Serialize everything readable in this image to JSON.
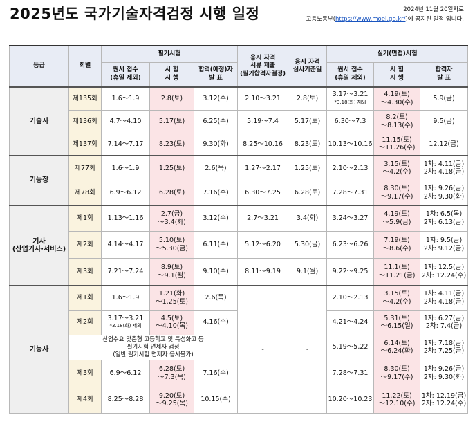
{
  "header": {
    "title": "2025년도 국가기술자격검정 시행 일정",
    "date_note": "2024년 11월 20일자로",
    "notice_pre": "고용노동부(",
    "notice_link": "https://www.moel.go.kr/",
    "notice_post": ")에 공지된 일정 입니다."
  },
  "table": {
    "h_grade": "등급",
    "h_session": "회별",
    "h_written": "필기시험",
    "h_w_app": [
      "원서 접수",
      "(휴일 제외)"
    ],
    "h_w_exam": [
      "시 험",
      "시 행"
    ],
    "h_w_result": [
      "합격(예정)자",
      "발 표"
    ],
    "h_doc": [
      "응시 자격",
      "서류 제출",
      "(필기합격자결정)"
    ],
    "h_review": [
      "응시 자격",
      "심사기준일"
    ],
    "h_practical": "실기(면접)시험",
    "h_p_app": [
      "원서 접수",
      "(휴일 제외)"
    ],
    "h_p_exam": [
      "시 험",
      "시 행"
    ],
    "h_p_result": [
      "합격자",
      "발 표"
    ],
    "groups": {
      "master": {
        "label": "기술사",
        "rows": [
          {
            "session": "제135회",
            "w_app": "1.6～1.9",
            "w_exam": "2.8(토)",
            "w_result": "3.12(수)",
            "doc": "2.10～3.21",
            "review": "2.8(토)",
            "p_app": "3.17～3.21",
            "p_app_note": "*3.18(화) 제외",
            "p_exam1": "4.19(토)",
            "p_exam2": "～4.30(수)",
            "p_res1": "5.9(금)"
          },
          {
            "session": "제136회",
            "w_app": "4.7～4.10",
            "w_exam": "5.17(토)",
            "w_result": "6.25(수)",
            "doc": "5.19～7.4",
            "review": "5.17(토)",
            "p_app": "6.30～7.3",
            "p_exam1": "8.2(토)",
            "p_exam2": "～8.13(수)",
            "p_res1": "9.5(금)"
          },
          {
            "session": "제137회",
            "w_app": "7.14～7.17",
            "w_exam": "8.23(토)",
            "w_result": "9.30(화)",
            "doc": "8.25～10.16",
            "review": "8.23(토)",
            "p_app": "10.13～10.16",
            "p_exam1": "11.15(토)",
            "p_exam2": "～11.26(수)",
            "p_res1": "12.12(금)"
          }
        ]
      },
      "craftsman_master": {
        "label": "기능장",
        "rows": [
          {
            "session": "제77회",
            "w_app": "1.6～1.9",
            "w_exam": "1.25(토)",
            "w_result": "2.6(목)",
            "doc": "1.27～2.17",
            "review": "1.25(토)",
            "p_app": "2.10～2.13",
            "p_exam1": "3.15(토)",
            "p_exam2": "～4.2(수)",
            "p_res1": "1차: 4.11(금)",
            "p_res2": "2차: 4.18(금)"
          },
          {
            "session": "제78회",
            "w_app": "6.9～6.12",
            "w_exam": "6.28(토)",
            "w_result": "7.16(수)",
            "doc": "6.30～7.25",
            "review": "6.28(토)",
            "p_app": "7.28～7.31",
            "p_exam1": "8.30(토)",
            "p_exam2": "～9.17(수)",
            "p_res1": "1차: 9.26(금)",
            "p_res2": "2차: 9.30(화)"
          }
        ]
      },
      "engineer": {
        "label": "기사",
        "label_sub": "(산업기사·서비스)",
        "rows": [
          {
            "session": "제1회",
            "w_app": "1.13～1.16",
            "w_exam1": "2.7(금)",
            "w_exam2": "～3.4(화)",
            "w_result": "3.12(수)",
            "doc": "2.7～3.21",
            "review": "3.4(화)",
            "p_app": "3.24～3.27",
            "p_exam1": "4.19(토)",
            "p_exam2": "～5.9(금)",
            "p_res1": "1차: 6.5(목)",
            "p_res2": "2차: 6.13(금)"
          },
          {
            "session": "제2회",
            "w_app": "4.14～4.17",
            "w_exam1": "5.10(토)",
            "w_exam2": "～5.30(금)",
            "w_result": "6.11(수)",
            "doc": "5.12～6.20",
            "review": "5.30(금)",
            "p_app": "6.23～6.26",
            "p_exam1": "7.19(토)",
            "p_exam2": "～8.6(수)",
            "p_res1": "1차: 9.5(금)",
            "p_res2": "2차: 9.12(금)"
          },
          {
            "session": "제3회",
            "w_app": "7.21～7.24",
            "w_exam1": "8.9(토)",
            "w_exam2": "～9.1(월)",
            "w_result": "9.10(수)",
            "doc": "8.11～9.19",
            "review": "9.1(월)",
            "p_app": "9.22～9.25",
            "p_exam1": "11.1(토)",
            "p_exam2": "～11.21(금)",
            "p_res1": "1차: 12.5(금)",
            "p_res2": "2차: 12.24(수)"
          }
        ]
      },
      "craftsman": {
        "label": "기능사",
        "dash1": "-",
        "dash2": "-",
        "special_note": [
          "산업수요 맞춤형 고등학교 및 특성화고 등",
          "필기시험 면제자 검정",
          "(일반 필기시험 면제자 응시불가)"
        ],
        "rows": [
          {
            "session": "제1회",
            "w_app": "1.6～1.9",
            "w_exam1": "1.21(화)",
            "w_exam2": "～1.25(토)",
            "w_result": "2.6(목)",
            "p_app": "2.10～2.13",
            "p_exam1": "3.15(토)",
            "p_exam2": "～4.2(수)",
            "p_res1": "1차: 4.11(금)",
            "p_res2": "2차: 4.18(금)"
          },
          {
            "session": "제2회",
            "w_app": "3.17～3.21",
            "w_app_note": "*3.18(화) 제외",
            "w_exam1": "4.5(토)",
            "w_exam2": "～4.10(목)",
            "w_result": "4.16(수)",
            "p_app": "4.21～4.24",
            "p_exam1": "5.31(토)",
            "p_exam2": "～6.15(일)",
            "p_res1": "1차: 6.27(금)",
            "p_res2": "2차: 7.4(금)"
          },
          {
            "special": true,
            "p_app": "5.19～5.22",
            "p_exam1": "6.14(토)",
            "p_exam2": "～6.24(화)",
            "p_res1": "1차: 7.18(금)",
            "p_res2": "2차: 7.25(금)"
          },
          {
            "session": "제3회",
            "w_app": "6.9～6.12",
            "w_exam1": "6.28(토)",
            "w_exam2": "～7.3(목)",
            "w_result": "7.16(수)",
            "p_app": "7.28～7.31",
            "p_exam1": "8.30(토)",
            "p_exam2": "～9.17(수)",
            "p_res1": "1차: 9.26(금)",
            "p_res2": "2차: 9.30(화)"
          },
          {
            "session": "제4회",
            "w_app": "8.25～8.28",
            "w_exam1": "9.20(토)",
            "w_exam2": "～9.25(목)",
            "w_result": "10.15(수)",
            "p_app": "10.20～10.23",
            "p_exam1": "11.22(토)",
            "p_exam2": "～12.10(수)",
            "p_res1": "1차: 12.19(금)",
            "p_res2": "2차: 12.24(수)"
          }
        ]
      }
    }
  }
}
